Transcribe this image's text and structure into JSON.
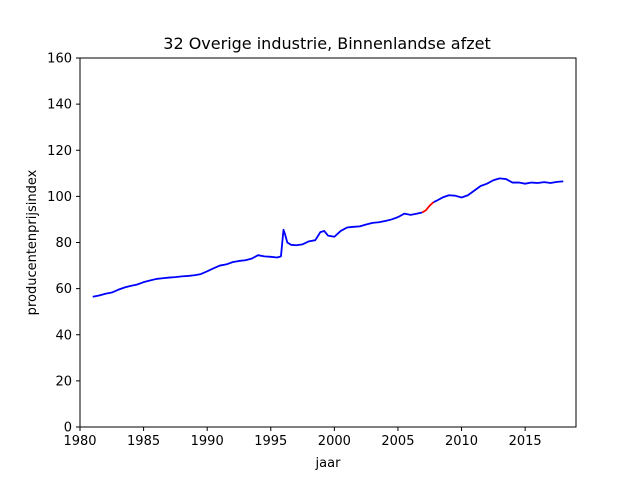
{
  "chart_data": {
    "type": "line",
    "title": "32 Overige industrie, Binnenlandse afzet",
    "xlabel": "jaar",
    "ylabel": "producentenprijsindex",
    "xlim": [
      1980,
      2019
    ],
    "ylim": [
      0,
      160
    ],
    "xticks": [
      1980,
      1985,
      1990,
      1995,
      2000,
      2005,
      2010,
      2015
    ],
    "yticks": [
      0,
      20,
      40,
      60,
      80,
      100,
      120,
      140,
      160
    ],
    "grid": false,
    "colors": {
      "main": "#0000ff",
      "highlight": "#ff0000"
    },
    "series": [
      {
        "color": "#0000ff",
        "x": [
          1981.0,
          1981.5,
          1982.0,
          1982.5,
          1983.0,
          1983.5,
          1984.0,
          1984.5,
          1985.0,
          1985.5,
          1986.0,
          1986.5,
          1987.0,
          1987.5,
          1988.0,
          1988.5,
          1989.0,
          1989.5,
          1990.0,
          1990.5,
          1991.0,
          1991.5,
          1992.0,
          1992.5,
          1993.0,
          1993.5,
          1994.0,
          1994.5,
          1995.0,
          1995.5,
          1995.8,
          1996.0,
          1996.1,
          1996.3,
          1996.6,
          1997.0,
          1997.5,
          1998.0,
          1998.5,
          1998.9,
          1999.2,
          1999.5,
          2000.0,
          2000.5,
          2001.0,
          2001.5,
          2002.0,
          2002.5,
          2003.0,
          2003.5,
          2004.0,
          2004.5,
          2005.0,
          2005.5,
          2006.0,
          2006.5,
          2006.9
        ],
        "y": [
          56.5,
          57.0,
          57.8,
          58.3,
          59.5,
          60.5,
          61.2,
          61.8,
          62.8,
          63.5,
          64.2,
          64.5,
          64.8,
          65.0,
          65.3,
          65.5,
          65.8,
          66.3,
          67.5,
          68.8,
          70.0,
          70.5,
          71.5,
          72.0,
          72.3,
          73.0,
          74.5,
          74.0,
          73.8,
          73.5,
          74.0,
          85.5,
          84.0,
          80.0,
          79.0,
          78.8,
          79.2,
          80.5,
          81.0,
          84.5,
          85.0,
          83.0,
          82.5,
          85.0,
          86.5,
          86.8,
          87.0,
          87.8,
          88.5,
          88.8,
          89.3,
          90.0,
          91.0,
          92.5,
          92.0,
          92.5,
          93.0
        ]
      },
      {
        "color": "#ff0000",
        "x": [
          2006.9,
          2007.2,
          2007.5,
          2007.8
        ],
        "y": [
          93.0,
          94.0,
          96.0,
          97.5
        ]
      },
      {
        "color": "#0000ff",
        "x": [
          2007.8,
          2008.0,
          2008.5,
          2009.0,
          2009.5,
          2010.0,
          2010.5,
          2011.0,
          2011.5,
          2012.0,
          2012.5,
          2013.0,
          2013.5,
          2014.0,
          2014.5,
          2015.0,
          2015.5,
          2016.0,
          2016.5,
          2017.0,
          2017.5,
          2018.0
        ],
        "y": [
          97.5,
          98.0,
          99.5,
          100.5,
          100.3,
          99.5,
          100.5,
          102.5,
          104.5,
          105.5,
          107.0,
          107.8,
          107.5,
          106.0,
          106.0,
          105.5,
          106.0,
          105.8,
          106.2,
          105.8,
          106.3,
          106.5
        ]
      }
    ]
  }
}
